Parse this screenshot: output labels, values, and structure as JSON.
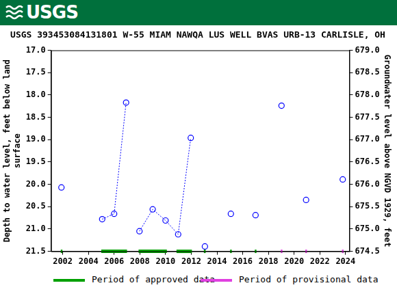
{
  "chart_data": {
    "type": "scatter",
    "header": "USGS",
    "title": "USGS 393453084131801 W-55 MIAM NAWQA LUS WELL BVAS URB-13 CARLISLE, OH",
    "y_label": [
      "Depth to water level, feet below land",
      "surface"
    ],
    "y2_label": "Groundwater level above NGVD 1929, feet",
    "xlim": [
      2001.1,
      2024.3
    ],
    "xticks": [
      2002,
      2004,
      2006,
      2008,
      2010,
      2012,
      2014,
      2016,
      2018,
      2020,
      2022,
      2024
    ],
    "ylim": [
      21.5,
      17.0
    ],
    "yticks": [
      {
        "value": 17,
        "label": "17.0"
      },
      17.5,
      {
        "value": 18,
        "label": "18.0"
      },
      18.5,
      {
        "value": 19,
        "label": "19.0"
      },
      19.5,
      {
        "value": 20,
        "label": "20.0"
      },
      20.5,
      {
        "value": 21,
        "label": "21.0"
      },
      21.5
    ],
    "y2lim": [
      674.5,
      679.0
    ],
    "y2ticks": [
      674.5,
      {
        "value": 675,
        "label": "675.0"
      },
      675.5,
      {
        "value": 676,
        "label": "676.0"
      },
      676.5,
      {
        "value": 677,
        "label": "677.0"
      },
      677.5,
      {
        "value": 678,
        "label": "678.0"
      },
      678.5,
      {
        "value": 679,
        "label": "679.0"
      }
    ],
    "grid": false,
    "series": [
      {
        "color": "#0000ff",
        "marker": "circle",
        "line_style": "none",
        "x": [
          2001.9,
          2013.06,
          2015.08,
          2017.0,
          2019.02,
          2020.93,
          2023.78
        ],
        "values": [
          20.07,
          21.39,
          20.66,
          20.69,
          18.24,
          20.35,
          19.89
        ]
      },
      {
        "color": "#0000ff",
        "marker": "circle",
        "line_style": "dotted",
        "x": [
          2005.07,
          2006.0,
          2006.93
        ],
        "values": [
          20.78,
          20.66,
          18.17
        ]
      },
      {
        "color": "#0000ff",
        "marker": "circle",
        "line_style": "dotted",
        "x": [
          2007.97,
          2009.0,
          2010.0,
          2010.98,
          2011.96
        ],
        "values": [
          21.05,
          20.56,
          20.81,
          21.12,
          18.96
        ]
      }
    ],
    "periods": [
      {
        "name": "Period of approved data",
        "color": "#00a000",
        "ranges": [
          [
            2001.85,
            2001.98
          ],
          [
            2005.0,
            2007.0
          ],
          [
            2007.9,
            2010.1
          ],
          [
            2010.85,
            2012.05
          ],
          [
            2012.98,
            2013.12
          ],
          [
            2015.02,
            2015.15
          ],
          [
            2016.94,
            2017.07
          ]
        ]
      },
      {
        "name": "Period of provisional data",
        "color": "#e040e0",
        "ranges": [
          [
            2018.96,
            2019.09
          ],
          [
            2020.87,
            2021.0
          ],
          [
            2023.72,
            2023.85
          ]
        ]
      }
    ]
  }
}
